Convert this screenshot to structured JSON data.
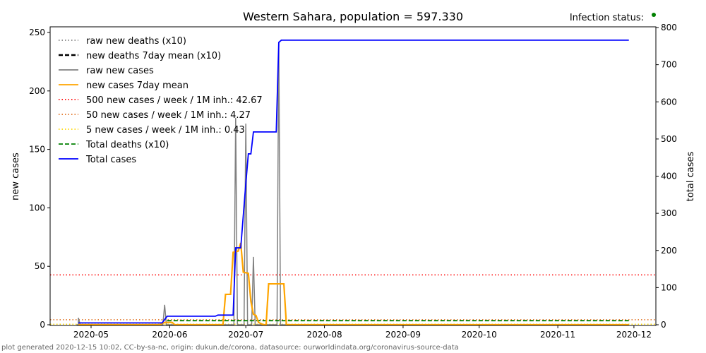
{
  "chart_data": {
    "type": "line",
    "title": "Western Sahara, population = 597.330",
    "status_label": "Infection status:",
    "status_color": "#008000",
    "xlabel": "",
    "ylabel": "new cases",
    "ylabel_right": "total cases",
    "ylim": [
      0,
      255
    ],
    "ylim_right": [
      0,
      805
    ],
    "xlim": [
      "2020-04-15",
      "2020-12-10"
    ],
    "x_ticks": [
      "2020-05",
      "2020-06",
      "2020-07",
      "2020-08",
      "2020-09",
      "2020-10",
      "2020-11",
      "2020-12"
    ],
    "y_ticks": [
      0,
      50,
      100,
      150,
      200,
      250
    ],
    "y_ticks_right": [
      0,
      100,
      200,
      300,
      400,
      500,
      600,
      700,
      800
    ],
    "legend_position": "top-left",
    "legend": [
      {
        "label": "raw new deaths (x10)",
        "color": "#808080",
        "style": "dotted"
      },
      {
        "label": "new deaths 7day mean (x10)",
        "color": "#000000",
        "style": "dashed"
      },
      {
        "label": "raw new cases",
        "color": "#808080",
        "style": "solid"
      },
      {
        "label": "new cases 7day mean",
        "color": "#FFA500",
        "style": "solid"
      },
      {
        "label": "500 new cases / week / 1M inh.: 42.67",
        "color": "#FF0000",
        "style": "dotted"
      },
      {
        "label": "50 new cases / week / 1M inh.: 4.27",
        "color": "#E07020",
        "style": "dotted"
      },
      {
        "label": "5 new cases / week / 1M inh.: 0.43",
        "color": "#FFD700",
        "style": "dotted"
      },
      {
        "label": "Total deaths (x10)",
        "color": "#008000",
        "style": "dashed"
      },
      {
        "label": "Total cases",
        "color": "#0000FF",
        "style": "solid"
      }
    ],
    "thresholds": [
      42.67,
      4.27,
      0.43
    ],
    "series": [
      {
        "name": "raw new cases",
        "axis": "left",
        "range": [
          "2020-04-26",
          "2020-11-29"
        ],
        "spikes": [
          [
            "2020-04-26",
            6
          ],
          [
            "2020-05-30",
            17
          ],
          [
            "2020-06-27",
            177
          ],
          [
            "2020-07-01",
            172
          ],
          [
            "2020-07-04",
            58
          ],
          [
            "2020-07-14",
            242
          ]
        ]
      },
      {
        "name": "new cases 7day mean",
        "axis": "left",
        "points": [
          [
            "2020-04-26",
            0
          ],
          [
            "2020-05-28",
            0
          ],
          [
            "2020-05-30",
            2
          ],
          [
            "2020-06-02",
            2
          ],
          [
            "2020-06-03",
            0
          ],
          [
            "2020-06-22",
            0
          ],
          [
            "2020-06-23",
            26
          ],
          [
            "2020-06-25",
            26
          ],
          [
            "2020-06-26",
            62
          ],
          [
            "2020-06-28",
            63
          ],
          [
            "2020-06-29",
            70
          ],
          [
            "2020-06-30",
            45
          ],
          [
            "2020-07-02",
            44
          ],
          [
            "2020-07-03",
            20
          ],
          [
            "2020-07-04",
            9
          ],
          [
            "2020-07-05",
            8
          ],
          [
            "2020-07-06",
            2
          ],
          [
            "2020-07-08",
            0
          ],
          [
            "2020-07-09",
            0
          ],
          [
            "2020-07-10",
            35
          ],
          [
            "2020-07-16",
            35
          ],
          [
            "2020-07-17",
            0
          ],
          [
            "2020-11-29",
            0
          ]
        ]
      },
      {
        "name": "Total deaths (x10)",
        "axis": "left",
        "points": [
          [
            "2020-05-31",
            3.5
          ],
          [
            "2020-11-29",
            3.5
          ]
        ]
      },
      {
        "name": "Total cases",
        "axis": "right",
        "points": [
          [
            "2020-04-26",
            5
          ],
          [
            "2020-05-29",
            5
          ],
          [
            "2020-05-31",
            23
          ],
          [
            "2020-06-19",
            23
          ],
          [
            "2020-06-20",
            26
          ],
          [
            "2020-06-26",
            26
          ],
          [
            "2020-06-27",
            207
          ],
          [
            "2020-06-29",
            207
          ],
          [
            "2020-07-01",
            380
          ],
          [
            "2020-07-02",
            460
          ],
          [
            "2020-07-03",
            460
          ],
          [
            "2020-07-04",
            519
          ],
          [
            "2020-07-13",
            519
          ],
          [
            "2020-07-14",
            760
          ],
          [
            "2020-07-15",
            766
          ],
          [
            "2020-11-29",
            766
          ]
        ]
      }
    ],
    "footer": "plot generated 2020-12-15 10:02, CC-by-sa-nc, origin: dukun.de/corona, datasource: ourworldindata.org/coronavirus-source-data"
  }
}
